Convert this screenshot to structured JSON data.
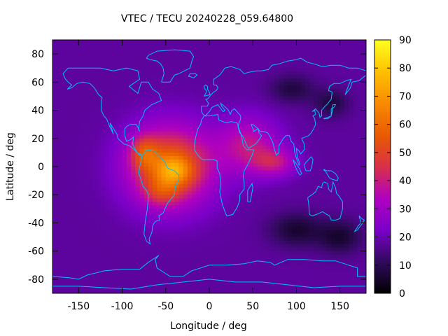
{
  "chart_data": {
    "type": "heatmap",
    "title": "VTEC / TECU 20240228_059.64800",
    "xlabel": "Longitude / deg",
    "ylabel": "Latitude / deg",
    "xlim": [
      -180,
      180
    ],
    "ylim": [
      -90,
      90
    ],
    "x_ticks": [
      -150,
      -100,
      -50,
      0,
      50,
      100,
      150
    ],
    "y_ticks": [
      -80,
      -60,
      -40,
      -20,
      0,
      20,
      40,
      60,
      80
    ],
    "grid": false,
    "colorbar": {
      "range": [
        0,
        90
      ],
      "ticks": [
        0,
        10,
        20,
        30,
        40,
        50,
        60,
        70,
        80,
        90
      ],
      "colormap": [
        "#000000",
        "#300a5c",
        "#7a00c8",
        "#b000c0",
        "#d8304a",
        "#e85a00",
        "#f88a00",
        "#ffc000",
        "#ffff20"
      ]
    },
    "grid_step_deg": [
      5,
      2.5
    ],
    "background_tecu": 18,
    "field_features": [
      {
        "label": "equatorial anomaly core, South Atlantic",
        "lon": -40,
        "lat": -3,
        "tecu": 88
      },
      {
        "label": "equatorial anomaly, northern South America",
        "lon": -75,
        "lat": 10,
        "tecu": 78
      },
      {
        "label": "equatorial anomaly, southern crest",
        "lon": -55,
        "lat": -18,
        "tecu": 72
      },
      {
        "label": "main enhancement, Americas-Atlantic",
        "lon": -45,
        "lat": 0,
        "tecu": 40
      },
      {
        "label": "northern tail, Africa-Arabia",
        "lon": 45,
        "lat": 15,
        "tecu": 20
      },
      {
        "label": "extension, Indian Ocean",
        "lon": 75,
        "lat": 3,
        "tecu": 18
      },
      {
        "label": "low, North Asia",
        "lon": 95,
        "lat": 55,
        "tecu": 8
      },
      {
        "label": "low, East Asia",
        "lon": 140,
        "lat": 45,
        "tecu": 8
      },
      {
        "label": "low, South Indian Ocean",
        "lon": 100,
        "lat": -45,
        "tecu": 6
      },
      {
        "label": "low, Southwest Pacific",
        "lon": 150,
        "lat": -50,
        "tecu": 6
      }
    ],
    "coastline_color": "#00bfff"
  }
}
